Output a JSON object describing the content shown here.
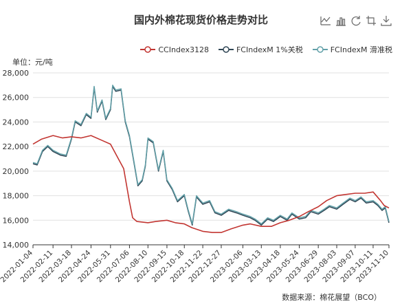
{
  "toolbox": {
    "icons": [
      "line-chart-icon",
      "bar-chart-icon",
      "refresh-icon",
      "download-icon",
      "save-icon"
    ]
  },
  "colors": {
    "cc": "#c23531",
    "fc_1pct": "#2f4554",
    "fc_sliding": "#61a0a8",
    "axis": "#333333",
    "grid": "#e0e0e0"
  },
  "chart_data": {
    "type": "line",
    "title": "国内外棉花现货价格走势对比",
    "ylabel": "单位：元/吨",
    "source": "数据来源：棉花展望（BCO）",
    "legend_position": "top-right",
    "grid": true,
    "ylim": [
      14000,
      28000
    ],
    "yticks": [
      14000,
      16000,
      18000,
      20000,
      22000,
      24000,
      26000,
      28000
    ],
    "ytick_labels": [
      "14,000",
      "16,000",
      "18,000",
      "20,000",
      "22,000",
      "24,000",
      "26,000",
      "28,000"
    ],
    "xlim": [
      "2022-01-04",
      "2023-11-10"
    ],
    "xtick_labels": [
      "2022-01-04",
      "2022-02-11",
      "2022-03-18",
      "2022-04-24",
      "2022-05-31",
      "2022-07-06",
      "2022-08-10",
      "2022-09-15",
      "2022-10-18",
      "2022-11-22",
      "2022-12-27",
      "2023-02-06",
      "2023-03-13",
      "2023-04-18",
      "2023-05-24",
      "2023-06-29",
      "2023-08-03",
      "2023-09-07",
      "2023-10-11",
      "2023-11-10"
    ],
    "series": [
      {
        "name": "CCIndex3128",
        "points": [
          [
            "2022-01-04",
            22200
          ],
          [
            "2022-01-20",
            22600
          ],
          [
            "2022-02-11",
            22900
          ],
          [
            "2022-03-01",
            22700
          ],
          [
            "2022-03-18",
            22800
          ],
          [
            "2022-04-05",
            22700
          ],
          [
            "2022-04-24",
            22900
          ],
          [
            "2022-05-15",
            22500
          ],
          [
            "2022-05-31",
            22200
          ],
          [
            "2022-06-15",
            21000
          ],
          [
            "2022-06-25",
            20200
          ],
          [
            "2022-07-06",
            17500
          ],
          [
            "2022-07-12",
            16200
          ],
          [
            "2022-07-20",
            15900
          ],
          [
            "2022-08-10",
            15800
          ],
          [
            "2022-08-25",
            15900
          ],
          [
            "2022-09-15",
            16000
          ],
          [
            "2022-10-01",
            15800
          ],
          [
            "2022-10-18",
            15700
          ],
          [
            "2022-11-01",
            15400
          ],
          [
            "2022-11-22",
            15100
          ],
          [
            "2022-12-10",
            15000
          ],
          [
            "2022-12-27",
            15000
          ],
          [
            "2023-01-15",
            15300
          ],
          [
            "2023-02-06",
            15600
          ],
          [
            "2023-02-20",
            15700
          ],
          [
            "2023-03-13",
            15500
          ],
          [
            "2023-04-01",
            15500
          ],
          [
            "2023-04-18",
            15800
          ],
          [
            "2023-05-05",
            16000
          ],
          [
            "2023-05-24",
            16300
          ],
          [
            "2023-06-10",
            16700
          ],
          [
            "2023-06-29",
            17100
          ],
          [
            "2023-07-15",
            17600
          ],
          [
            "2023-08-03",
            18000
          ],
          [
            "2023-08-20",
            18100
          ],
          [
            "2023-09-07",
            18200
          ],
          [
            "2023-09-25",
            18200
          ],
          [
            "2023-10-11",
            18300
          ],
          [
            "2023-10-25",
            17600
          ],
          [
            "2023-11-01",
            17200
          ],
          [
            "2023-11-10",
            17000
          ]
        ]
      },
      {
        "name": "FCIndexM 1%关税",
        "points": [
          [
            "2022-01-04",
            20600
          ],
          [
            "2022-01-12",
            20500
          ],
          [
            "2022-01-22",
            21600
          ],
          [
            "2022-02-01",
            22000
          ],
          [
            "2022-02-11",
            21600
          ],
          [
            "2022-02-25",
            21300
          ],
          [
            "2022-03-08",
            21200
          ],
          [
            "2022-03-18",
            22600
          ],
          [
            "2022-03-25",
            24000
          ],
          [
            "2022-04-05",
            23700
          ],
          [
            "2022-04-15",
            24600
          ],
          [
            "2022-04-24",
            24300
          ],
          [
            "2022-04-30",
            26800
          ],
          [
            "2022-05-06",
            24800
          ],
          [
            "2022-05-15",
            25700
          ],
          [
            "2022-05-22",
            24200
          ],
          [
            "2022-05-31",
            25000
          ],
          [
            "2022-06-04",
            26900
          ],
          [
            "2022-06-10",
            26500
          ],
          [
            "2022-06-20",
            26600
          ],
          [
            "2022-06-28",
            24000
          ],
          [
            "2022-07-06",
            22800
          ],
          [
            "2022-07-14",
            20800
          ],
          [
            "2022-07-22",
            18800
          ],
          [
            "2022-07-30",
            19200
          ],
          [
            "2022-08-05",
            20400
          ],
          [
            "2022-08-10",
            22600
          ],
          [
            "2022-08-20",
            22300
          ],
          [
            "2022-08-30",
            20000
          ],
          [
            "2022-09-08",
            21600
          ],
          [
            "2022-09-15",
            19200
          ],
          [
            "2022-09-25",
            18500
          ],
          [
            "2022-10-05",
            17500
          ],
          [
            "2022-10-18",
            18000
          ],
          [
            "2022-10-25",
            16800
          ],
          [
            "2022-11-02",
            15600
          ],
          [
            "2022-11-10",
            17900
          ],
          [
            "2022-11-22",
            17300
          ],
          [
            "2022-12-05",
            17500
          ],
          [
            "2022-12-15",
            16600
          ],
          [
            "2022-12-27",
            16400
          ],
          [
            "2023-01-10",
            16800
          ],
          [
            "2023-01-25",
            16600
          ],
          [
            "2023-02-06",
            16400
          ],
          [
            "2023-02-20",
            16200
          ],
          [
            "2023-03-01",
            16000
          ],
          [
            "2023-03-13",
            15600
          ],
          [
            "2023-03-25",
            16100
          ],
          [
            "2023-04-05",
            15900
          ],
          [
            "2023-04-18",
            16300
          ],
          [
            "2023-05-01",
            16000
          ],
          [
            "2023-05-10",
            16500
          ],
          [
            "2023-05-24",
            16100
          ],
          [
            "2023-06-05",
            16200
          ],
          [
            "2023-06-15",
            16700
          ],
          [
            "2023-06-29",
            16500
          ],
          [
            "2023-07-10",
            16800
          ],
          [
            "2023-07-20",
            17100
          ],
          [
            "2023-08-03",
            16900
          ],
          [
            "2023-08-15",
            17300
          ],
          [
            "2023-08-28",
            17700
          ],
          [
            "2023-09-07",
            17500
          ],
          [
            "2023-09-18",
            17800
          ],
          [
            "2023-09-28",
            17400
          ],
          [
            "2023-10-11",
            17500
          ],
          [
            "2023-10-20",
            17200
          ],
          [
            "2023-10-28",
            16800
          ],
          [
            "2023-11-03",
            17000
          ],
          [
            "2023-11-10",
            15800
          ]
        ]
      },
      {
        "name": "FCIndexM 滑准税",
        "points": [
          [
            "2022-01-04",
            20700
          ],
          [
            "2022-01-12",
            20600
          ],
          [
            "2022-01-22",
            21700
          ],
          [
            "2022-02-01",
            22100
          ],
          [
            "2022-02-11",
            21700
          ],
          [
            "2022-02-25",
            21400
          ],
          [
            "2022-03-08",
            21300
          ],
          [
            "2022-03-18",
            22700
          ],
          [
            "2022-03-25",
            24100
          ],
          [
            "2022-04-05",
            23800
          ],
          [
            "2022-04-15",
            24700
          ],
          [
            "2022-04-24",
            24400
          ],
          [
            "2022-04-30",
            26900
          ],
          [
            "2022-05-06",
            24900
          ],
          [
            "2022-05-15",
            25800
          ],
          [
            "2022-05-22",
            24300
          ],
          [
            "2022-05-31",
            25100
          ],
          [
            "2022-06-04",
            27000
          ],
          [
            "2022-06-10",
            26600
          ],
          [
            "2022-06-20",
            26700
          ],
          [
            "2022-06-28",
            24100
          ],
          [
            "2022-07-06",
            22900
          ],
          [
            "2022-07-14",
            20900
          ],
          [
            "2022-07-22",
            18900
          ],
          [
            "2022-07-30",
            19300
          ],
          [
            "2022-08-05",
            20500
          ],
          [
            "2022-08-10",
            22700
          ],
          [
            "2022-08-20",
            22400
          ],
          [
            "2022-08-30",
            20100
          ],
          [
            "2022-09-08",
            21700
          ],
          [
            "2022-09-15",
            19300
          ],
          [
            "2022-09-25",
            18600
          ],
          [
            "2022-10-05",
            17600
          ],
          [
            "2022-10-18",
            18100
          ],
          [
            "2022-10-25",
            16900
          ],
          [
            "2022-11-02",
            15700
          ],
          [
            "2022-11-10",
            18000
          ],
          [
            "2022-11-22",
            17400
          ],
          [
            "2022-12-05",
            17600
          ],
          [
            "2022-12-15",
            16700
          ],
          [
            "2022-12-27",
            16500
          ],
          [
            "2023-01-10",
            16900
          ],
          [
            "2023-01-25",
            16700
          ],
          [
            "2023-02-06",
            16500
          ],
          [
            "2023-02-20",
            16300
          ],
          [
            "2023-03-01",
            16100
          ],
          [
            "2023-03-13",
            15700
          ],
          [
            "2023-03-25",
            16200
          ],
          [
            "2023-04-05",
            16000
          ],
          [
            "2023-04-18",
            16400
          ],
          [
            "2023-05-01",
            16100
          ],
          [
            "2023-05-10",
            16600
          ],
          [
            "2023-05-24",
            16200
          ],
          [
            "2023-06-05",
            16300
          ],
          [
            "2023-06-15",
            16800
          ],
          [
            "2023-06-29",
            16600
          ],
          [
            "2023-07-10",
            16900
          ],
          [
            "2023-07-20",
            17200
          ],
          [
            "2023-08-03",
            17000
          ],
          [
            "2023-08-15",
            17400
          ],
          [
            "2023-08-28",
            17800
          ],
          [
            "2023-09-07",
            17600
          ],
          [
            "2023-09-18",
            17900
          ],
          [
            "2023-09-28",
            17500
          ],
          [
            "2023-10-11",
            17600
          ],
          [
            "2023-10-20",
            17300
          ],
          [
            "2023-10-28",
            16900
          ],
          [
            "2023-11-03",
            17100
          ],
          [
            "2023-11-10",
            15900
          ]
        ]
      }
    ]
  }
}
